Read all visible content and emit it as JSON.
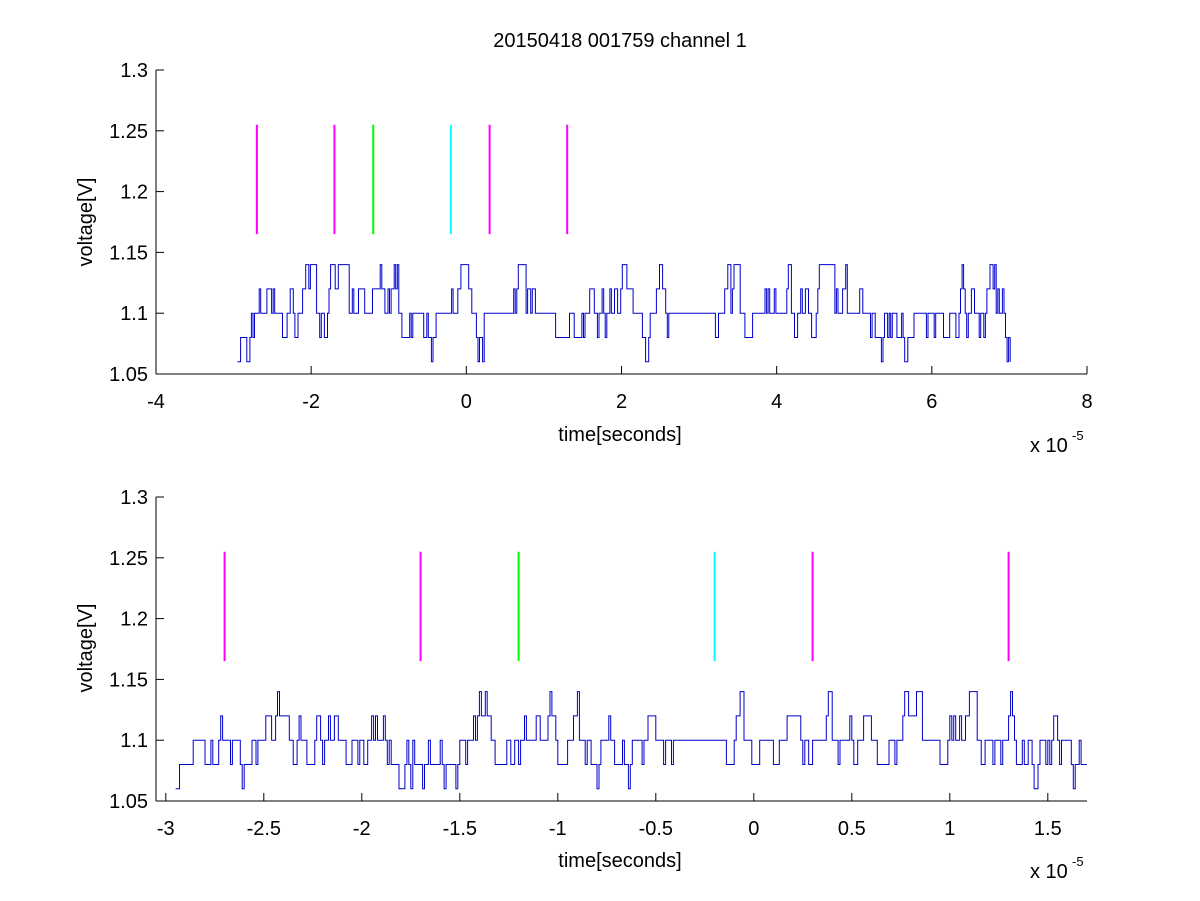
{
  "figure": {
    "title": "20150418 001759 channel 1"
  },
  "chart_data": [
    {
      "type": "line",
      "title": "20150418 001759 channel 1",
      "xlabel": "time[seconds]",
      "ylabel": "voltage[V]",
      "x_exponent_label": "x 10",
      "x_exponent": "-5",
      "xlim": [
        -4e-05,
        8e-05
      ],
      "ylim": [
        1.05,
        1.3
      ],
      "xticks": [
        "-4",
        "-2",
        "0",
        "2",
        "4",
        "6",
        "8"
      ],
      "xtick_values": [
        -4e-05,
        -2e-05,
        0,
        2e-05,
        4e-05,
        6e-05,
        8e-05
      ],
      "yticks": [
        "1.05",
        "1.1",
        "1.15",
        "1.2",
        "1.25",
        "1.3"
      ],
      "ytick_values": [
        1.05,
        1.1,
        1.15,
        1.2,
        1.25,
        1.3
      ],
      "grid": false,
      "signal": {
        "color": "#0000cc",
        "x_start": -2.95e-05,
        "x_end": 7e-05,
        "sample_step": 2e-07,
        "levels": [
          1.06,
          1.08,
          1.1,
          1.12,
          1.14
        ],
        "baseline": 1.1,
        "quiet_intervals": [
          [
            -4e-06,
            -2e-06
          ],
          [
            2.6e-05,
            3.2e-05
          ]
        ]
      },
      "markers": [
        {
          "x": -2.7e-05,
          "y_range": [
            1.165,
            1.255
          ],
          "color": "#ff00ff"
        },
        {
          "x": -1.7e-05,
          "y_range": [
            1.165,
            1.255
          ],
          "color": "#ff00ff"
        },
        {
          "x": -1.2e-05,
          "y_range": [
            1.165,
            1.255
          ],
          "color": "#00ff00"
        },
        {
          "x": -2e-06,
          "y_range": [
            1.165,
            1.255
          ],
          "color": "#00ffff"
        },
        {
          "x": 3e-06,
          "y_range": [
            1.165,
            1.255
          ],
          "color": "#ff00ff"
        },
        {
          "x": 1.3e-05,
          "y_range": [
            1.165,
            1.255
          ],
          "color": "#ff00ff"
        }
      ]
    },
    {
      "type": "line",
      "title": "",
      "xlabel": "time[seconds]",
      "ylabel": "voltage[V]",
      "x_exponent_label": "x 10",
      "x_exponent": "-5",
      "xlim": [
        -3.05e-05,
        1.7e-05
      ],
      "ylim": [
        1.05,
        1.3
      ],
      "xticks": [
        "-3",
        "-2.5",
        "-2",
        "-1.5",
        "-1",
        "-0.5",
        "0",
        "0.5",
        "1",
        "1.5"
      ],
      "xtick_values": [
        -3e-05,
        -2.5e-05,
        -2e-05,
        -1.5e-05,
        -1e-05,
        -5e-06,
        0,
        5e-06,
        1e-05,
        1.5e-05
      ],
      "yticks": [
        "1.05",
        "1.1",
        "1.15",
        "1.2",
        "1.25",
        "1.3"
      ],
      "ytick_values": [
        1.05,
        1.1,
        1.15,
        1.2,
        1.25,
        1.3
      ],
      "grid": false,
      "signal": {
        "color": "#0000cc",
        "x_start": -2.95e-05,
        "x_end": 1.7e-05,
        "sample_step": 1e-07,
        "levels": [
          1.06,
          1.08,
          1.1,
          1.12,
          1.14
        ],
        "baseline": 1.1,
        "quiet_intervals": [
          [
            -4e-06,
            -2e-06
          ]
        ]
      },
      "markers": [
        {
          "x": -2.7e-05,
          "y_range": [
            1.165,
            1.255
          ],
          "color": "#ff00ff"
        },
        {
          "x": -1.7e-05,
          "y_range": [
            1.165,
            1.255
          ],
          "color": "#ff00ff"
        },
        {
          "x": -1.2e-05,
          "y_range": [
            1.165,
            1.255
          ],
          "color": "#00ff00"
        },
        {
          "x": -2e-06,
          "y_range": [
            1.165,
            1.255
          ],
          "color": "#00ffff"
        },
        {
          "x": 3e-06,
          "y_range": [
            1.165,
            1.255
          ],
          "color": "#ff00ff"
        },
        {
          "x": 1.3e-05,
          "y_range": [
            1.165,
            1.255
          ],
          "color": "#ff00ff"
        }
      ]
    }
  ]
}
